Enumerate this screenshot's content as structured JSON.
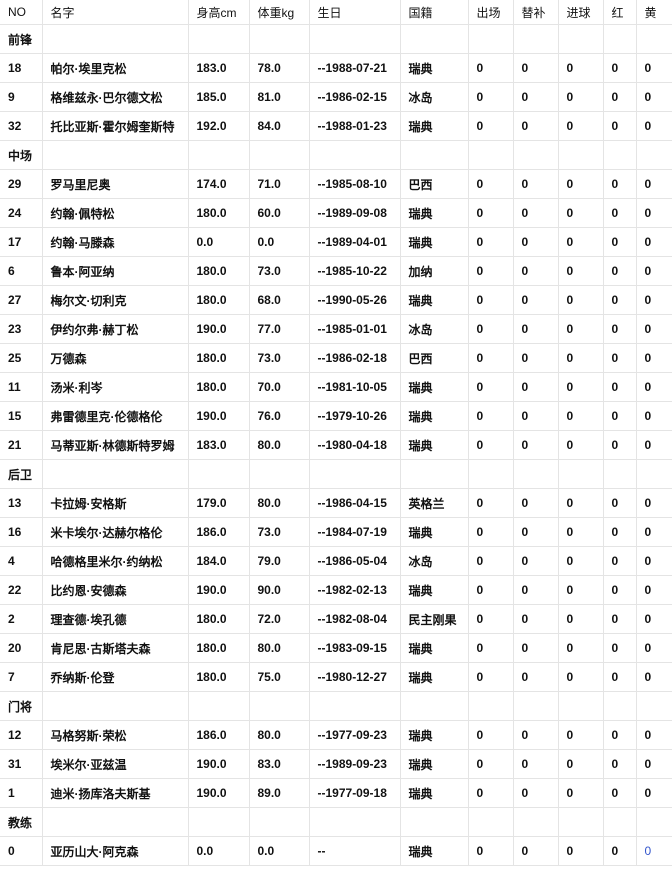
{
  "columns": [
    "NO",
    "名字",
    "身高cm",
    "体重kg",
    "生日",
    "国籍",
    "出场",
    "替补",
    "进球",
    "红",
    "黄"
  ],
  "groups": [
    {
      "label": "前锋",
      "rows": [
        [
          "18",
          "帕尔·埃里克松",
          "183.0",
          "78.0",
          "--1988-07-21",
          "瑞典",
          "0",
          "0",
          "0",
          "0",
          "0"
        ],
        [
          "9",
          "格维兹永·巴尔德文松",
          "185.0",
          "81.0",
          "--1986-02-15",
          "冰岛",
          "0",
          "0",
          "0",
          "0",
          "0"
        ],
        [
          "32",
          "托比亚斯·霍尔姆奎斯特",
          "192.0",
          "84.0",
          "--1988-01-23",
          "瑞典",
          "0",
          "0",
          "0",
          "0",
          "0"
        ]
      ]
    },
    {
      "label": "中场",
      "rows": [
        [
          "29",
          "罗马里尼奥",
          "174.0",
          "71.0",
          "--1985-08-10",
          "巴西",
          "0",
          "0",
          "0",
          "0",
          "0"
        ],
        [
          "24",
          "约翰·佩特松",
          "180.0",
          "60.0",
          "--1989-09-08",
          "瑞典",
          "0",
          "0",
          "0",
          "0",
          "0"
        ],
        [
          "17",
          "约翰·马滕森",
          "0.0",
          "0.0",
          "--1989-04-01",
          "瑞典",
          "0",
          "0",
          "0",
          "0",
          "0"
        ],
        [
          "6",
          "鲁本·阿亚纳",
          "180.0",
          "73.0",
          "--1985-10-22",
          "加纳",
          "0",
          "0",
          "0",
          "0",
          "0"
        ],
        [
          "27",
          "梅尔文·切利克",
          "180.0",
          "68.0",
          "--1990-05-26",
          "瑞典",
          "0",
          "0",
          "0",
          "0",
          "0"
        ],
        [
          "23",
          "伊约尔弗·赫丁松",
          "190.0",
          "77.0",
          "--1985-01-01",
          "冰岛",
          "0",
          "0",
          "0",
          "0",
          "0"
        ],
        [
          "25",
          "万德森",
          "180.0",
          "73.0",
          "--1986-02-18",
          "巴西",
          "0",
          "0",
          "0",
          "0",
          "0"
        ],
        [
          "11",
          "汤米·利岑",
          "180.0",
          "70.0",
          "--1981-10-05",
          "瑞典",
          "0",
          "0",
          "0",
          "0",
          "0"
        ],
        [
          "15",
          "弗雷德里克·伦德格伦",
          "190.0",
          "76.0",
          "--1979-10-26",
          "瑞典",
          "0",
          "0",
          "0",
          "0",
          "0"
        ],
        [
          "21",
          "马蒂亚斯·林德斯特罗姆",
          "183.0",
          "80.0",
          "--1980-04-18",
          "瑞典",
          "0",
          "0",
          "0",
          "0",
          "0"
        ]
      ]
    },
    {
      "label": "后卫",
      "rows": [
        [
          "13",
          "卡拉姆·安格斯",
          "179.0",
          "80.0",
          "--1986-04-15",
          "英格兰",
          "0",
          "0",
          "0",
          "0",
          "0"
        ],
        [
          "16",
          "米卡埃尔·达赫尔格伦",
          "186.0",
          "73.0",
          "--1984-07-19",
          "瑞典",
          "0",
          "0",
          "0",
          "0",
          "0"
        ],
        [
          "4",
          "哈德格里米尔·约纳松",
          "184.0",
          "79.0",
          "--1986-05-04",
          "冰岛",
          "0",
          "0",
          "0",
          "0",
          "0"
        ],
        [
          "22",
          "比约恩·安德森",
          "190.0",
          "90.0",
          "--1982-02-13",
          "瑞典",
          "0",
          "0",
          "0",
          "0",
          "0"
        ],
        [
          "2",
          "理查德·埃孔德",
          "180.0",
          "72.0",
          "--1982-08-04",
          "民主刚果",
          "0",
          "0",
          "0",
          "0",
          "0"
        ],
        [
          "20",
          "肯尼思·古斯塔夫森",
          "180.0",
          "80.0",
          "--1983-09-15",
          "瑞典",
          "0",
          "0",
          "0",
          "0",
          "0"
        ],
        [
          "7",
          "乔纳斯·伦登",
          "180.0",
          "75.0",
          "--1980-12-27",
          "瑞典",
          "0",
          "0",
          "0",
          "0",
          "0"
        ]
      ]
    },
    {
      "label": "门将",
      "rows": [
        [
          "12",
          "马格努斯·荣松",
          "186.0",
          "80.0",
          "--1977-09-23",
          "瑞典",
          "0",
          "0",
          "0",
          "0",
          "0"
        ],
        [
          "31",
          "埃米尔·亚兹温",
          "190.0",
          "83.0",
          "--1989-09-23",
          "瑞典",
          "0",
          "0",
          "0",
          "0",
          "0"
        ],
        [
          "1",
          "迪米·扬库洛夫斯基",
          "190.0",
          "89.0",
          "--1977-09-18",
          "瑞典",
          "0",
          "0",
          "0",
          "0",
          "0"
        ]
      ]
    },
    {
      "label": "教练",
      "rows": [
        [
          "0",
          "亚历山大·阿克森",
          "0.0",
          "0.0",
          "--",
          "瑞典",
          "0",
          "0",
          "0",
          "0",
          "0"
        ]
      ]
    }
  ],
  "colors": {
    "border": "#e4e4e4",
    "link": "#3355cc"
  }
}
